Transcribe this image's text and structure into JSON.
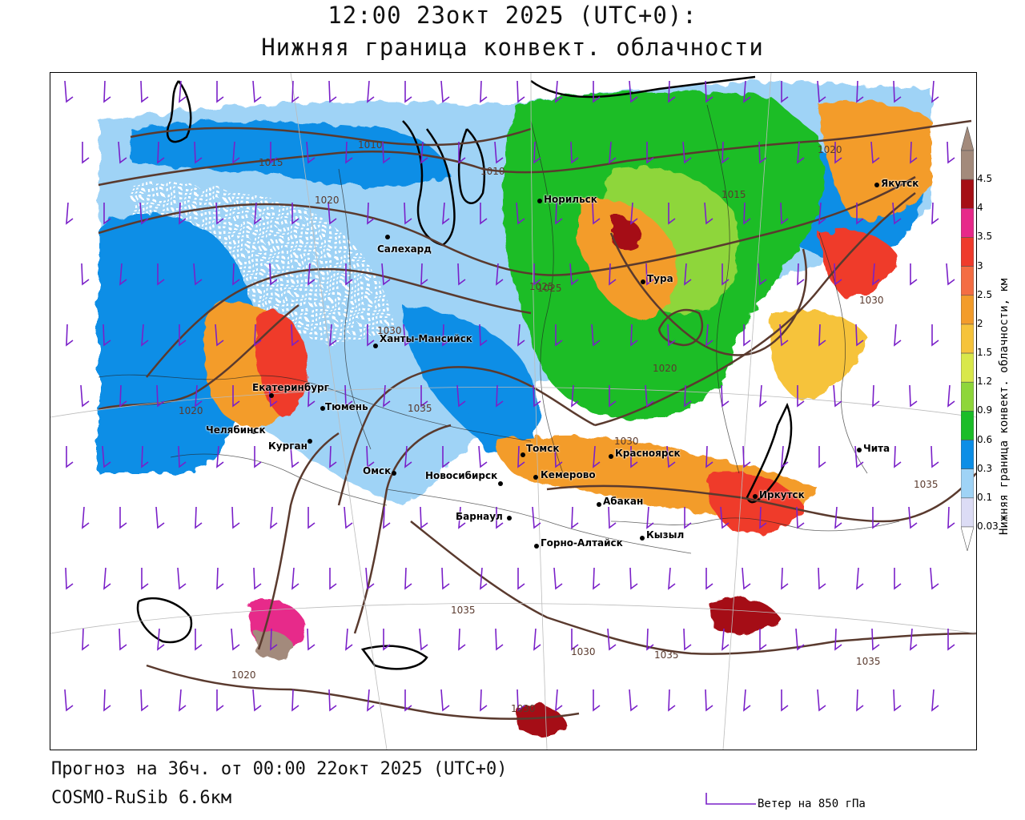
{
  "title": {
    "line1": "12:00 23окт 2025 (UTC+0):",
    "line2": "Нижняя граница конвект. облачности"
  },
  "footer": {
    "forecast": "Прогноз на 36ч. от 00:00 22окт 2025 (UTC+0)",
    "model": "COSMO-RuSib 6.6км",
    "wind_legend": "Ветер на 850 гПа"
  },
  "colorbar": {
    "title": "Нижняя граница конвект. облачности, км",
    "labels": [
      "4.5",
      "4",
      "3.5",
      "3",
      "2.5",
      "2",
      "1.5",
      "1.2",
      "0.9",
      "0.6",
      "0.3",
      "0.1",
      "0.03"
    ],
    "colors": [
      "#a38a7b",
      "#a50f15",
      "#e7298a",
      "#ef3b2c",
      "#f46d43",
      "#f39c2b",
      "#f6c33b",
      "#d9e84a",
      "#8ed63a",
      "#1bbd28",
      "#0c8ee6",
      "#9fd3f6",
      "#dcdcf5"
    ]
  },
  "cities": [
    {
      "name": "Норильск"
    },
    {
      "name": "Якутск"
    },
    {
      "name": "Салехард"
    },
    {
      "name": "Тура"
    },
    {
      "name": "Ханты-Мансийск"
    },
    {
      "name": "Екатеринбург"
    },
    {
      "name": "Тюмень"
    },
    {
      "name": "Челябинск"
    },
    {
      "name": "Курган"
    },
    {
      "name": "Омск"
    },
    {
      "name": "Новосибирск"
    },
    {
      "name": "Томск"
    },
    {
      "name": "Кемерово"
    },
    {
      "name": "Красноярск"
    },
    {
      "name": "Абакан"
    },
    {
      "name": "Барнаул"
    },
    {
      "name": "Горно-Алтайск"
    },
    {
      "name": "Кызыл"
    },
    {
      "name": "Иркутск"
    },
    {
      "name": "Чита"
    }
  ],
  "isobar_labels": [
    "1010",
    "1015",
    "1020",
    "1010",
    "1015",
    "1020",
    "1025",
    "1030",
    "1035",
    "1020",
    "1030",
    "1025",
    "1030",
    "1035",
    "1035",
    "1030",
    "1035",
    "1035",
    "1020",
    "1030",
    "1020"
  ],
  "colors": {
    "isobar": "#5a3a2e",
    "wind_barb": "#7a20c8",
    "coast": "#000000"
  }
}
